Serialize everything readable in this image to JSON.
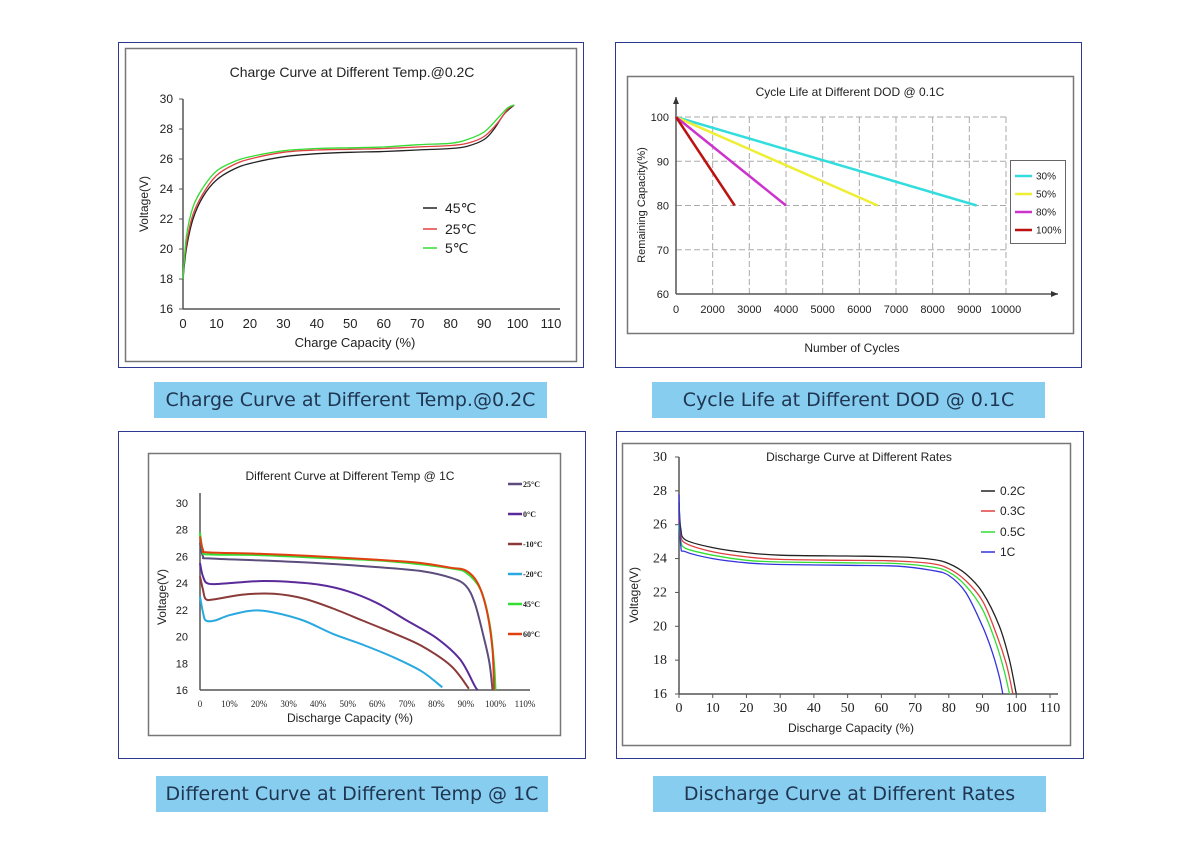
{
  "captions": [
    "Charge Curve at Different Temp.@0.2C",
    "Cycle Life at Different DOD @ 0.1C",
    "Different Curve at Different Temp @ 1C",
    "Discharge Curve at Different Rates"
  ],
  "colors": {
    "frame": "#2b3990",
    "caption_bg": "#87cdf0",
    "caption_text": "#1f3550"
  },
  "chart_data": [
    {
      "type": "line",
      "title": "Charge Curve at Different Temp.@0.2C",
      "xlabel": "Charge Capacity (%)",
      "ylabel": "Voltage(V)",
      "xlim": [
        0,
        110
      ],
      "ylim": [
        16,
        30
      ],
      "x_ticks": [
        0,
        10,
        20,
        30,
        40,
        50,
        60,
        70,
        80,
        90,
        100,
        110
      ],
      "x_tick_labels": [
        "0",
        "10",
        "20",
        "30",
        "40",
        "50",
        "60",
        "70",
        "80",
        "90",
        "100",
        "110"
      ],
      "y_ticks": [
        16,
        18,
        20,
        22,
        24,
        26,
        28,
        30
      ],
      "y_tick_labels": [
        "16",
        "18",
        "20",
        "22",
        "24",
        "26",
        "28",
        "30"
      ],
      "grid": false,
      "legend": "center-right",
      "series": [
        {
          "name": "45℃",
          "color": "#222222",
          "points": [
            [
              0,
              18
            ],
            [
              1,
              20
            ],
            [
              3,
              22
            ],
            [
              6,
              23.5
            ],
            [
              10,
              24.6
            ],
            [
              15,
              25.3
            ],
            [
              20,
              25.7
            ],
            [
              30,
              26.15
            ],
            [
              40,
              26.35
            ],
            [
              50,
              26.45
            ],
            [
              60,
              26.5
            ],
            [
              70,
              26.6
            ],
            [
              80,
              26.7
            ],
            [
              85,
              26.85
            ],
            [
              90,
              27.3
            ],
            [
              93,
              28
            ],
            [
              96,
              29
            ],
            [
              99,
              29.6
            ]
          ]
        },
        {
          "name": "25℃",
          "color": "#e04040",
          "points": [
            [
              0,
              18.3
            ],
            [
              1,
              20.3
            ],
            [
              3,
              22.3
            ],
            [
              6,
              23.7
            ],
            [
              10,
              24.9
            ],
            [
              15,
              25.6
            ],
            [
              20,
              26
            ],
            [
              30,
              26.45
            ],
            [
              40,
              26.6
            ],
            [
              50,
              26.65
            ],
            [
              60,
              26.7
            ],
            [
              70,
              26.8
            ],
            [
              80,
              26.9
            ],
            [
              85,
              27.05
            ],
            [
              90,
              27.5
            ],
            [
              94,
              28.4
            ],
            [
              97,
              29.3
            ],
            [
              99,
              29.6
            ]
          ]
        },
        {
          "name": "5℃",
          "color": "#33dd33",
          "points": [
            [
              0,
              18
            ],
            [
              1,
              20.8
            ],
            [
              3,
              22.8
            ],
            [
              6,
              24.1
            ],
            [
              10,
              25.2
            ],
            [
              15,
              25.8
            ],
            [
              20,
              26.15
            ],
            [
              30,
              26.55
            ],
            [
              40,
              26.7
            ],
            [
              50,
              26.75
            ],
            [
              60,
              26.8
            ],
            [
              70,
              26.95
            ],
            [
              80,
              27.05
            ],
            [
              85,
              27.3
            ],
            [
              90,
              27.8
            ],
            [
              94,
              28.7
            ],
            [
              97,
              29.4
            ],
            [
              99,
              29.6
            ]
          ]
        }
      ]
    },
    {
      "type": "line",
      "title": "Cycle Life at Different DOD @ 0.1C",
      "xlabel": "Number of Cycles",
      "ylabel": "Remaining Capacity(%)",
      "xlim": [
        0,
        10000
      ],
      "ylim": [
        60,
        100
      ],
      "x_ticks": [
        0,
        2000,
        3000,
        4000,
        5000,
        6000,
        7000,
        8000,
        9000,
        10000
      ],
      "x_tick_labels": [
        "0",
        "2000",
        "3000",
        "4000",
        "5000",
        "6000",
        "7000",
        "8000",
        "9000",
        "10000"
      ],
      "y_ticks": [
        60,
        70,
        80,
        90,
        100
      ],
      "y_tick_labels": [
        "60",
        "70",
        "80",
        "90",
        "100"
      ],
      "grid": true,
      "legend": "right",
      "series": [
        {
          "name": "30%",
          "color": "#33dddd",
          "points": [
            [
              0,
              100
            ],
            [
              9200,
              80
            ]
          ]
        },
        {
          "name": "50%",
          "color": "#eeee33",
          "points": [
            [
              0,
              100
            ],
            [
              6500,
              80
            ]
          ]
        },
        {
          "name": "80%",
          "color": "#cc33cc",
          "points": [
            [
              0,
              100
            ],
            [
              4000,
              80
            ]
          ]
        },
        {
          "name": "100%",
          "color": "#bb1111",
          "points": [
            [
              0,
              100
            ],
            [
              2600,
              80
            ]
          ]
        }
      ]
    },
    {
      "type": "line",
      "title": "Different Curve at Different Temp @ 1C",
      "xlabel": "Discharge Capacity (%)",
      "ylabel": "Voltage(V)",
      "xlim": [
        0,
        110
      ],
      "ylim": [
        16,
        30
      ],
      "x_ticks": [
        0,
        10,
        20,
        30,
        40,
        50,
        60,
        70,
        80,
        90,
        100,
        110
      ],
      "x_tick_labels": [
        "0",
        "10%",
        "20%",
        "30%",
        "40%",
        "50%",
        "60%",
        "70%",
        "80%",
        "90%",
        "100%",
        "110%"
      ],
      "y_ticks": [
        16,
        18,
        20,
        22,
        24,
        26,
        28,
        30
      ],
      "y_tick_labels": [
        "16",
        "18",
        "20",
        "22",
        "24",
        "26",
        "28",
        "30"
      ],
      "grid": false,
      "legend": "right",
      "series": [
        {
          "name": "25°C",
          "color": "#5c4d7d",
          "points": [
            [
              0,
              27
            ],
            [
              1,
              26
            ],
            [
              3,
              25.85
            ],
            [
              20,
              25.7
            ],
            [
              40,
              25.5
            ],
            [
              60,
              25.2
            ],
            [
              75,
              24.9
            ],
            [
              85,
              24.4
            ],
            [
              90,
              23.8
            ],
            [
              93,
              22.5
            ],
            [
              96,
              20
            ],
            [
              98,
              18
            ],
            [
              99,
              16
            ]
          ]
        },
        {
          "name": "0°C",
          "color": "#5a2a9a",
          "points": [
            [
              0,
              25.5
            ],
            [
              1,
              24.5
            ],
            [
              3,
              23.95
            ],
            [
              10,
              24
            ],
            [
              20,
              24.15
            ],
            [
              30,
              24.1
            ],
            [
              40,
              23.9
            ],
            [
              50,
              23.4
            ],
            [
              60,
              22.5
            ],
            [
              70,
              21.2
            ],
            [
              80,
              19.9
            ],
            [
              88,
              18.3
            ],
            [
              93,
              16.3
            ],
            [
              94,
              16
            ]
          ]
        },
        {
          "name": "-10°C",
          "color": "#8b3a3a",
          "points": [
            [
              0,
              24.5
            ],
            [
              1,
              23.5
            ],
            [
              2,
              22.8
            ],
            [
              5,
              22.8
            ],
            [
              15,
              23.15
            ],
            [
              25,
              23.2
            ],
            [
              35,
              22.85
            ],
            [
              45,
              22.1
            ],
            [
              55,
              21.2
            ],
            [
              65,
              20.3
            ],
            [
              75,
              19.3
            ],
            [
              85,
              17.8
            ],
            [
              91,
              16.1
            ]
          ]
        },
        {
          "name": "-20°C",
          "color": "#2aa8e0",
          "points": [
            [
              0,
              23
            ],
            [
              1,
              21.8
            ],
            [
              2,
              21.2
            ],
            [
              5,
              21.2
            ],
            [
              10,
              21.6
            ],
            [
              18,
              21.95
            ],
            [
              25,
              21.8
            ],
            [
              35,
              21.2
            ],
            [
              45,
              20.2
            ],
            [
              55,
              19.4
            ],
            [
              65,
              18.5
            ],
            [
              75,
              17.4
            ],
            [
              82,
              16.2
            ]
          ]
        },
        {
          "name": "45°C",
          "color": "#33dd33",
          "points": [
            [
              0,
              27.8
            ],
            [
              1,
              26.4
            ],
            [
              3,
              26.15
            ],
            [
              20,
              26.1
            ],
            [
              40,
              25.9
            ],
            [
              60,
              25.7
            ],
            [
              75,
              25.4
            ],
            [
              85,
              25.1
            ],
            [
              90,
              24.8
            ],
            [
              95,
              23.5
            ],
            [
              98,
              21
            ],
            [
              99.5,
              18
            ],
            [
              100,
              16
            ]
          ]
        },
        {
          "name": "60°C",
          "color": "#e04010",
          "points": [
            [
              0,
              27.5
            ],
            [
              1,
              26.5
            ],
            [
              3,
              26.3
            ],
            [
              20,
              26.2
            ],
            [
              40,
              26
            ],
            [
              60,
              25.75
            ],
            [
              75,
              25.5
            ],
            [
              85,
              25.15
            ],
            [
              90,
              24.95
            ],
            [
              94,
              24
            ],
            [
              97,
              22
            ],
            [
              99,
              19
            ],
            [
              99.5,
              16
            ]
          ]
        }
      ]
    },
    {
      "type": "line",
      "title": "Discharge Curve at Different Rates",
      "xlabel": "Discharge Capacity (%)",
      "ylabel": "Voltage(V)",
      "xlim": [
        0,
        110
      ],
      "ylim": [
        16,
        30
      ],
      "x_ticks": [
        0,
        10,
        20,
        30,
        40,
        50,
        60,
        70,
        80,
        90,
        100,
        110
      ],
      "x_tick_labels": [
        "0",
        "10",
        "20",
        "30",
        "40",
        "50",
        "60",
        "70",
        "80",
        "90",
        "100",
        "110"
      ],
      "y_ticks": [
        16,
        18,
        20,
        22,
        24,
        26,
        28,
        30
      ],
      "y_tick_labels": [
        "16",
        "18",
        "20",
        "22",
        "24",
        "26",
        "28",
        "30"
      ],
      "grid": false,
      "legend": "top-right",
      "series": [
        {
          "name": "0.2C",
          "color": "#222222",
          "points": [
            [
              0,
              27.3
            ],
            [
              0.5,
              25.8
            ],
            [
              2,
              25.1
            ],
            [
              10,
              24.65
            ],
            [
              20,
              24.35
            ],
            [
              30,
              24.2
            ],
            [
              50,
              24.15
            ],
            [
              65,
              24.1
            ],
            [
              75,
              23.95
            ],
            [
              80,
              23.7
            ],
            [
              85,
              23.1
            ],
            [
              90,
              22
            ],
            [
              95,
              20
            ],
            [
              98,
              18
            ],
            [
              100,
              16
            ]
          ]
        },
        {
          "name": "0.3C",
          "color": "#e04040",
          "points": [
            [
              0,
              26.4
            ],
            [
              0.5,
              25.4
            ],
            [
              2,
              24.9
            ],
            [
              10,
              24.4
            ],
            [
              20,
              24.1
            ],
            [
              30,
              23.95
            ],
            [
              50,
              23.9
            ],
            [
              65,
              23.85
            ],
            [
              75,
              23.7
            ],
            [
              80,
              23.4
            ],
            [
              85,
              22.7
            ],
            [
              90,
              21.5
            ],
            [
              94,
              19.6
            ],
            [
              97,
              17.8
            ],
            [
              99,
              16
            ]
          ]
        },
        {
          "name": "0.5C",
          "color": "#33dd33",
          "points": [
            [
              0,
              26
            ],
            [
              0.5,
              25.1
            ],
            [
              2,
              24.6
            ],
            [
              10,
              24.2
            ],
            [
              20,
              23.9
            ],
            [
              30,
              23.8
            ],
            [
              50,
              23.75
            ],
            [
              65,
              23.7
            ],
            [
              75,
              23.5
            ],
            [
              80,
              23.2
            ],
            [
              85,
              22.4
            ],
            [
              90,
              21
            ],
            [
              94,
              19
            ],
            [
              96.5,
              17.3
            ],
            [
              98,
              16
            ]
          ]
        },
        {
          "name": "1C",
          "color": "#3333dd",
          "points": [
            [
              0,
              27.8
            ],
            [
              0.5,
              24.8
            ],
            [
              2,
              24.4
            ],
            [
              10,
              24
            ],
            [
              20,
              23.75
            ],
            [
              30,
              23.65
            ],
            [
              50,
              23.6
            ],
            [
              65,
              23.55
            ],
            [
              75,
              23.3
            ],
            [
              80,
              23
            ],
            [
              85,
              22
            ],
            [
              90,
              20
            ],
            [
              93,
              18.4
            ],
            [
              95,
              17
            ],
            [
              96,
              16
            ]
          ]
        }
      ]
    }
  ]
}
